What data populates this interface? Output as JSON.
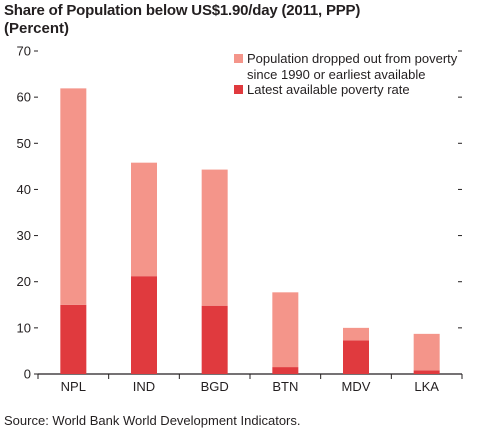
{
  "chart_data": {
    "type": "bar",
    "stacked": true,
    "title": "Share of Population below US$1.90/day (2011, PPP)",
    "subtitle": "(Percent)",
    "categories": [
      "NPL",
      "IND",
      "BGD",
      "BTN",
      "MDV",
      "LKA"
    ],
    "series": [
      {
        "name": "Latest available poverty rate",
        "color": "#e03a3e",
        "values": [
          15.0,
          21.2,
          14.8,
          1.5,
          7.3,
          0.8
        ]
      },
      {
        "name": "Population dropped out from poverty since 1990 or earliest available",
        "color": "#f4958a",
        "values": [
          46.9,
          24.6,
          29.5,
          16.2,
          2.7,
          7.9
        ]
      }
    ],
    "ylim": [
      0,
      70
    ],
    "yticks": [
      0,
      10,
      20,
      30,
      40,
      50,
      60,
      70
    ],
    "legend_position": "top-right",
    "source": "Source: World Bank World Development Indicators."
  }
}
